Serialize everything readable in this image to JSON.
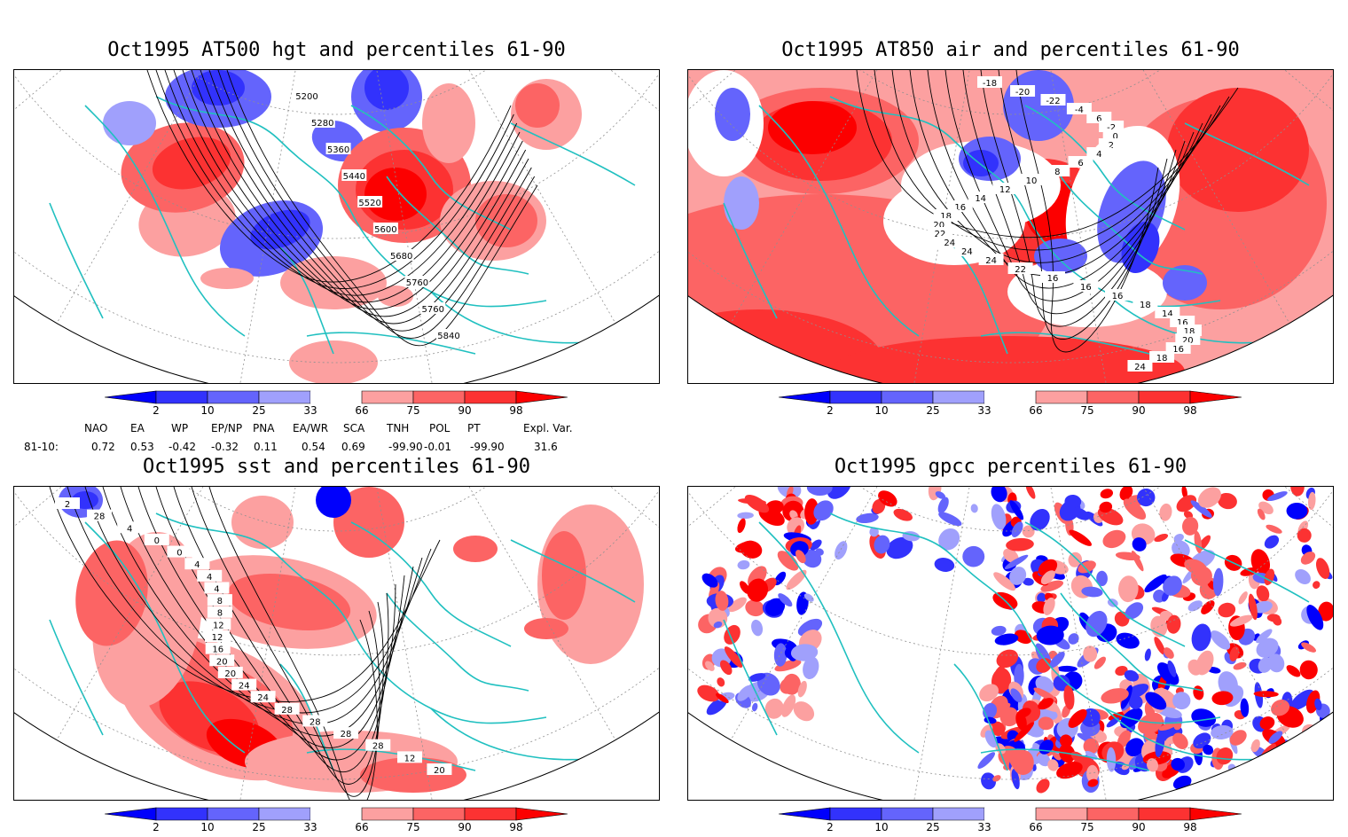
{
  "colors": {
    "red_dark": "#fc0000",
    "red_mid": "#fc3232",
    "red_light": "#fc6464",
    "red_pale": "#fca0a0",
    "blue_dark": "#0000fc",
    "blue_mid": "#3232fc",
    "blue_light": "#6464fc",
    "blue_pale": "#a0a0fc",
    "coast": "#20c0c0",
    "contour": "#000000",
    "grid": "#909090"
  },
  "colorbar": {
    "labels": [
      "2",
      "10",
      "25",
      "33",
      "66",
      "75",
      "90",
      "98"
    ]
  },
  "panels": [
    {
      "title": "Oct1995 AT500 hgt and percentiles 61-90",
      "contour_labels": [
        "5200",
        "5280",
        "5360",
        "5440",
        "5520",
        "5600",
        "5680",
        "5760",
        "5760",
        "5840"
      ]
    },
    {
      "title": "Oct1995 AT850 air and percentiles 61-90",
      "contour_labels": [
        "-18",
        "-20",
        "-22",
        "-4",
        "6",
        "-2",
        "0",
        "2",
        "4",
        "6",
        "8",
        "10",
        "12",
        "14",
        "16",
        "18",
        "20",
        "22",
        "24",
        "24",
        "24",
        "22",
        "16",
        "16",
        "16",
        "18",
        "14",
        "16",
        "18",
        "20",
        "16",
        "18",
        "24"
      ]
    },
    {
      "title": "Oct1995 sst and percentiles 61-90",
      "contour_labels": [
        "2",
        "28",
        "4",
        "0",
        "0",
        "4",
        "4",
        "4",
        "8",
        "8",
        "12",
        "12",
        "16",
        "20",
        "20",
        "24",
        "24",
        "28",
        "28",
        "28",
        "28",
        "12",
        "20"
      ]
    },
    {
      "title": "Oct1995 gpcc percentiles 61-90",
      "contour_labels": []
    }
  ],
  "teleconnections": {
    "headers": [
      "NAO",
      "EA",
      "WP",
      "EP/NP",
      "PNA",
      "EA/WR",
      "SCA",
      "TNH",
      "POL",
      "PT",
      "Expl. Var."
    ],
    "row_label": "81-10:",
    "values": [
      "0.72",
      "0.53",
      "-0.42",
      "-0.32",
      "0.11",
      "0.54",
      "0.69",
      "-99.90",
      "-0.01",
      "-99.90",
      "31.6"
    ]
  }
}
